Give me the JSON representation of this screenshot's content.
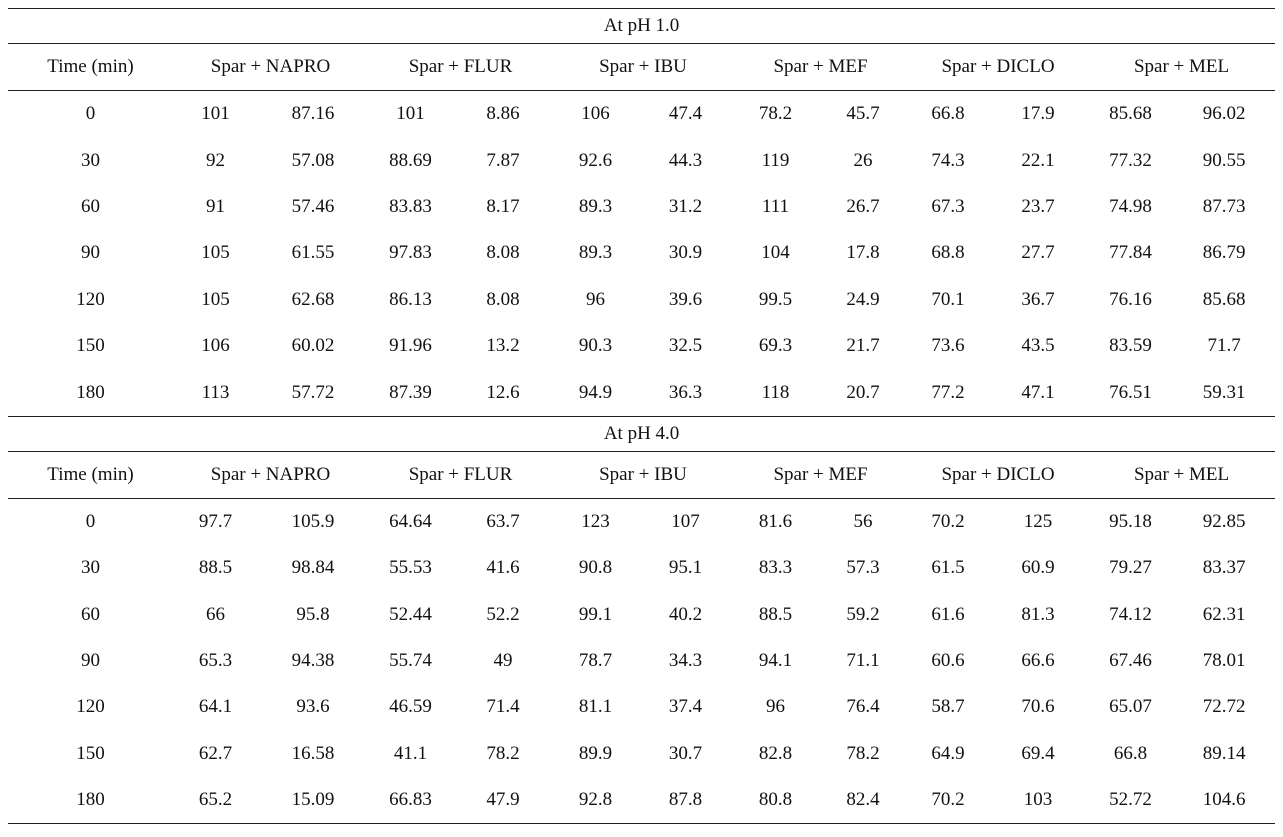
{
  "columns": [
    "Time (min)",
    "Spar + NAPRO",
    "Spar + FLUR",
    "Spar + IBU",
    "Spar + MEF",
    "Spar + DICLO",
    "Spar + MEL"
  ],
  "sections": [
    {
      "title": "At pH 1.0",
      "rows": [
        {
          "time": "0",
          "values": [
            "101",
            "87.16",
            "101",
            "8.86",
            "106",
            "47.4",
            "78.2",
            "45.7",
            "66.8",
            "17.9",
            "85.68",
            "96.02"
          ]
        },
        {
          "time": "30",
          "values": [
            "92",
            "57.08",
            "88.69",
            "7.87",
            "92.6",
            "44.3",
            "119",
            "26",
            "74.3",
            "22.1",
            "77.32",
            "90.55"
          ]
        },
        {
          "time": "60",
          "values": [
            "91",
            "57.46",
            "83.83",
            "8.17",
            "89.3",
            "31.2",
            "111",
            "26.7",
            "67.3",
            "23.7",
            "74.98",
            "87.73"
          ]
        },
        {
          "time": "90",
          "values": [
            "105",
            "61.55",
            "97.83",
            "8.08",
            "89.3",
            "30.9",
            "104",
            "17.8",
            "68.8",
            "27.7",
            "77.84",
            "86.79"
          ]
        },
        {
          "time": "120",
          "values": [
            "105",
            "62.68",
            "86.13",
            "8.08",
            "96",
            "39.6",
            "99.5",
            "24.9",
            "70.1",
            "36.7",
            "76.16",
            "85.68"
          ]
        },
        {
          "time": "150",
          "values": [
            "106",
            "60.02",
            "91.96",
            "13.2",
            "90.3",
            "32.5",
            "69.3",
            "21.7",
            "73.6",
            "43.5",
            "83.59",
            "71.7"
          ]
        },
        {
          "time": "180",
          "values": [
            "113",
            "57.72",
            "87.39",
            "12.6",
            "94.9",
            "36.3",
            "118",
            "20.7",
            "77.2",
            "47.1",
            "76.51",
            "59.31"
          ]
        }
      ]
    },
    {
      "title": "At pH 4.0",
      "rows": [
        {
          "time": "0",
          "values": [
            "97.7",
            "105.9",
            "64.64",
            "63.7",
            "123",
            "107",
            "81.6",
            "56",
            "70.2",
            "125",
            "95.18",
            "92.85"
          ]
        },
        {
          "time": "30",
          "values": [
            "88.5",
            "98.84",
            "55.53",
            "41.6",
            "90.8",
            "95.1",
            "83.3",
            "57.3",
            "61.5",
            "60.9",
            "79.27",
            "83.37"
          ]
        },
        {
          "time": "60",
          "values": [
            "66",
            "95.8",
            "52.44",
            "52.2",
            "99.1",
            "40.2",
            "88.5",
            "59.2",
            "61.6",
            "81.3",
            "74.12",
            "62.31"
          ]
        },
        {
          "time": "90",
          "values": [
            "65.3",
            "94.38",
            "55.74",
            "49",
            "78.7",
            "34.3",
            "94.1",
            "71.1",
            "60.6",
            "66.6",
            "67.46",
            "78.01"
          ]
        },
        {
          "time": "120",
          "values": [
            "64.1",
            "93.6",
            "46.59",
            "71.4",
            "81.1",
            "37.4",
            "96",
            "76.4",
            "58.7",
            "70.6",
            "65.07",
            "72.72"
          ]
        },
        {
          "time": "150",
          "values": [
            "62.7",
            "16.58",
            "41.1",
            "78.2",
            "89.9",
            "30.7",
            "82.8",
            "78.2",
            "64.9",
            "69.4",
            "66.8",
            "89.14"
          ]
        },
        {
          "time": "180",
          "values": [
            "65.2",
            "15.09",
            "66.83",
            "47.9",
            "92.8",
            "87.8",
            "80.8",
            "82.4",
            "70.2",
            "103",
            "52.72",
            "104.6"
          ]
        }
      ]
    }
  ]
}
